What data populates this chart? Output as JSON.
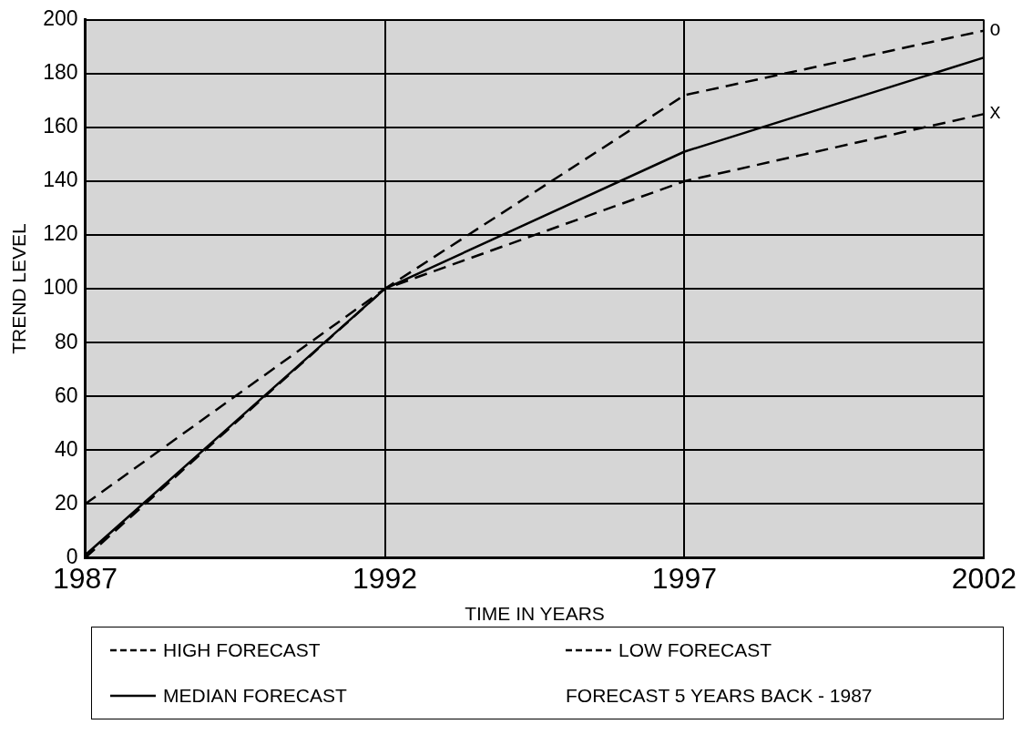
{
  "chart_data": {
    "type": "line",
    "xlabel": "TIME IN YEARS",
    "ylabel": "TREND LEVEL",
    "x": [
      1987,
      1992,
      1997,
      2002
    ],
    "series": [
      {
        "name": "HIGH FORECAST",
        "color": "#000000",
        "line_style": "dashed",
        "values": [
          0,
          100,
          172,
          196
        ]
      },
      {
        "name": "MEDIAN FORECAST",
        "color": "#000000",
        "line_style": "solid",
        "values": [
          1,
          100,
          151,
          186
        ]
      },
      {
        "name": "LOW FORECAST",
        "color": "#000000",
        "line_style": "dashed",
        "values": [
          20,
          100,
          140,
          165
        ]
      }
    ],
    "xlim": [
      1987,
      2002
    ],
    "xticks": [
      1987,
      1992,
      1997,
      2002
    ],
    "ylim": [
      0,
      200
    ],
    "yticks": [
      0,
      20,
      40,
      60,
      80,
      100,
      120,
      140,
      160,
      180,
      200
    ],
    "grid": true,
    "legend": "bottom",
    "marker": "none",
    "annotations": [
      {
        "text": "O",
        "x": 2002,
        "y": 196
      },
      {
        "text": "X",
        "x": 2002,
        "y": 165
      },
      "FORECAST 5 YEARS BACK - 1987"
    ]
  }
}
